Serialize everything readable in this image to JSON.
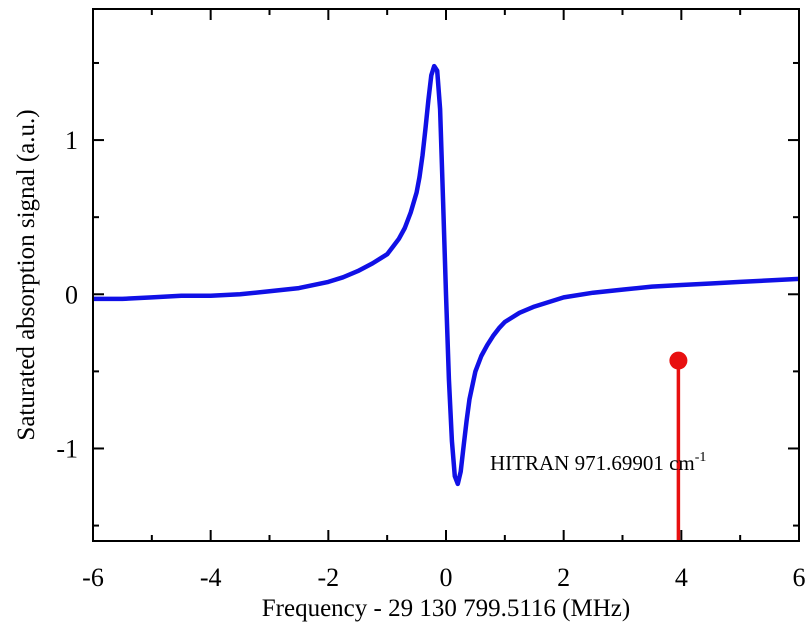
{
  "chart_data": {
    "type": "line",
    "title": "",
    "xlabel": "Frequency - 29 130 799.5116 (MHz)",
    "ylabel": "Saturated absorption signal (a.u.)",
    "xlim": [
      -6,
      6
    ],
    "ylim": [
      -1.6,
      1.85
    ],
    "x_ticks": [
      -6,
      -4,
      -2,
      0,
      2,
      4,
      6
    ],
    "x_tick_labels": [
      "-6",
      "-4",
      "-2",
      "0",
      "2",
      "4",
      "6"
    ],
    "y_ticks": [
      -1,
      0,
      1
    ],
    "y_tick_labels": [
      "-1",
      "0",
      "1"
    ],
    "grid": false,
    "series": [
      {
        "color": "#1010e6",
        "x": [
          -6.0,
          -5.5,
          -5.0,
          -4.5,
          -4.0,
          -3.5,
          -3.0,
          -2.5,
          -2.0,
          -1.75,
          -1.5,
          -1.25,
          -1.0,
          -0.9,
          -0.8,
          -0.7,
          -0.6,
          -0.5,
          -0.45,
          -0.4,
          -0.35,
          -0.3,
          -0.25,
          -0.2,
          -0.15,
          -0.1,
          -0.05,
          0.0,
          0.05,
          0.1,
          0.15,
          0.2,
          0.25,
          0.3,
          0.35,
          0.4,
          0.5,
          0.6,
          0.7,
          0.8,
          0.9,
          1.0,
          1.25,
          1.5,
          1.75,
          2.0,
          2.5,
          3.0,
          3.5,
          4.0,
          4.5,
          5.0,
          5.5,
          6.0
        ],
        "y": [
          -0.03,
          -0.03,
          -0.02,
          -0.01,
          -0.01,
          0.0,
          0.02,
          0.04,
          0.08,
          0.11,
          0.15,
          0.2,
          0.26,
          0.31,
          0.36,
          0.43,
          0.53,
          0.66,
          0.76,
          0.9,
          1.07,
          1.26,
          1.42,
          1.48,
          1.45,
          1.2,
          0.6,
          0.0,
          -0.55,
          -0.95,
          -1.18,
          -1.23,
          -1.15,
          -0.98,
          -0.82,
          -0.68,
          -0.5,
          -0.4,
          -0.33,
          -0.27,
          -0.22,
          -0.18,
          -0.12,
          -0.08,
          -0.05,
          -0.02,
          0.01,
          0.03,
          0.05,
          0.06,
          0.07,
          0.08,
          0.09,
          0.1
        ]
      }
    ],
    "annotations": [
      {
        "text": "HITRAN 971.69901 cm",
        "superscript": "-1",
        "marker_x": 3.95,
        "marker_y": -0.43,
        "color": "#e81010"
      }
    ]
  }
}
